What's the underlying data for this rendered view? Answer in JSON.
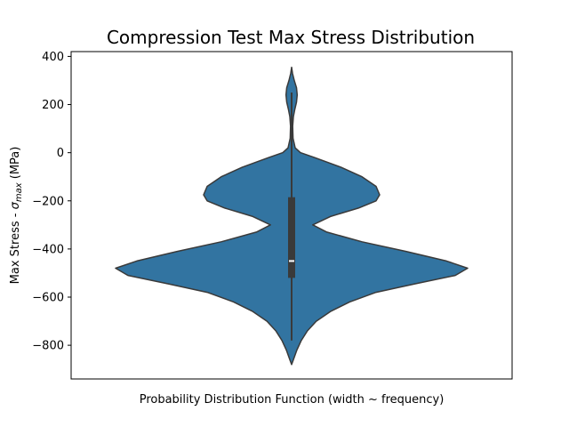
{
  "chart_data": {
    "type": "violin",
    "title": "Compression Test Max Stress Distribution",
    "xlabel": "Probability Distribution Function (width ~ frequency)",
    "ylabel_prefix": "Max Stress - ",
    "ylabel_symbol": "σ",
    "ylabel_subscript": "max",
    "ylabel_suffix": " (MPa)",
    "ylim": [
      -940,
      420
    ],
    "yticks": [
      -800,
      -600,
      -400,
      -200,
      0,
      200,
      400
    ],
    "ytick_labels": [
      "−800",
      "−600",
      "−400",
      "−200",
      "0",
      "200",
      "400"
    ],
    "grid": false,
    "color": "#3274a1",
    "edge_color": "#3a3a3a",
    "density_profile": [
      {
        "y": 355,
        "width": 0.0
      },
      {
        "y": 330,
        "width": 0.005
      },
      {
        "y": 300,
        "width": 0.015
      },
      {
        "y": 270,
        "width": 0.028
      },
      {
        "y": 240,
        "width": 0.032
      },
      {
        "y": 210,
        "width": 0.028
      },
      {
        "y": 180,
        "width": 0.018
      },
      {
        "y": 150,
        "width": 0.01
      },
      {
        "y": 110,
        "width": 0.006
      },
      {
        "y": 60,
        "width": 0.008
      },
      {
        "y": 20,
        "width": 0.02
      },
      {
        "y": 0,
        "width": 0.05
      },
      {
        "y": -20,
        "width": 0.13
      },
      {
        "y": -60,
        "width": 0.28
      },
      {
        "y": -100,
        "width": 0.4
      },
      {
        "y": -140,
        "width": 0.48
      },
      {
        "y": -175,
        "width": 0.5
      },
      {
        "y": -200,
        "width": 0.48
      },
      {
        "y": -230,
        "width": 0.38
      },
      {
        "y": -265,
        "width": 0.22
      },
      {
        "y": -300,
        "width": 0.12
      },
      {
        "y": -330,
        "width": 0.2
      },
      {
        "y": -370,
        "width": 0.4
      },
      {
        "y": -410,
        "width": 0.65
      },
      {
        "y": -450,
        "width": 0.88
      },
      {
        "y": -480,
        "width": 1.0
      },
      {
        "y": -510,
        "width": 0.93
      },
      {
        "y": -545,
        "width": 0.7
      },
      {
        "y": -580,
        "width": 0.48
      },
      {
        "y": -620,
        "width": 0.33
      },
      {
        "y": -660,
        "width": 0.22
      },
      {
        "y": -700,
        "width": 0.14
      },
      {
        "y": -740,
        "width": 0.09
      },
      {
        "y": -780,
        "width": 0.055
      },
      {
        "y": -820,
        "width": 0.03
      },
      {
        "y": -860,
        "width": 0.01
      },
      {
        "y": -880,
        "width": 0.0
      }
    ],
    "whisker_min": -780,
    "whisker_max": 250,
    "q1": -520,
    "q3": -185,
    "median": -450
  }
}
